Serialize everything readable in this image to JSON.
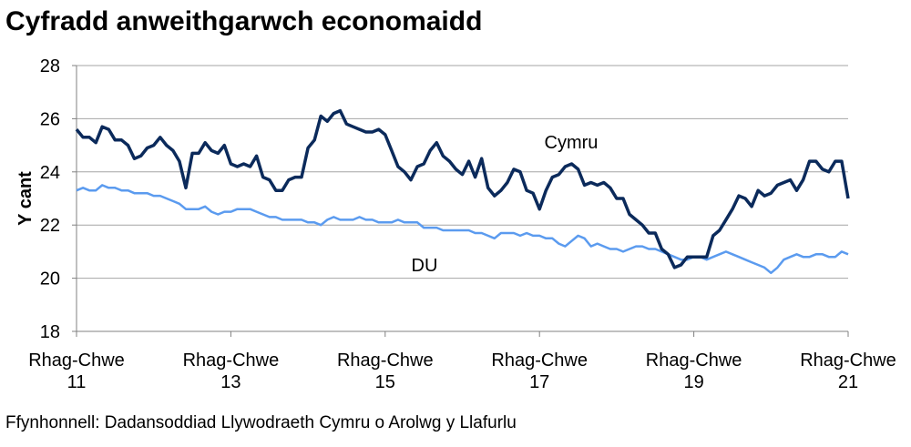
{
  "chart_data": {
    "type": "line",
    "title": "Cyfradd anweithgarwch economaidd",
    "y_label": "Y cant",
    "source": "Ffynhonnell: Dadansoddiad Llywodraeth Cymru o Arolwg y Llafurlu",
    "categories": [
      [
        "Rhag-Chwe",
        "11"
      ],
      null,
      null,
      null,
      null,
      null,
      null,
      null,
      null,
      null,
      null,
      null,
      null,
      null,
      null,
      null,
      null,
      null,
      null,
      null,
      null,
      null,
      null,
      null,
      [
        "Rhag-Chwe",
        "13"
      ],
      null,
      null,
      null,
      null,
      null,
      null,
      null,
      null,
      null,
      null,
      null,
      null,
      null,
      null,
      null,
      null,
      null,
      null,
      null,
      null,
      null,
      null,
      null,
      [
        "Rhag-Chwe",
        "15"
      ],
      null,
      null,
      null,
      null,
      null,
      null,
      null,
      null,
      null,
      null,
      null,
      null,
      null,
      null,
      null,
      null,
      null,
      null,
      null,
      null,
      null,
      null,
      null,
      [
        "Rhag-Chwe",
        "17"
      ],
      null,
      null,
      null,
      null,
      null,
      null,
      null,
      null,
      null,
      null,
      null,
      null,
      null,
      null,
      null,
      null,
      null,
      null,
      null,
      null,
      null,
      null,
      null,
      [
        "Rhag-Chwe",
        "19"
      ],
      null,
      null,
      null,
      null,
      null,
      null,
      null,
      null,
      null,
      null,
      null,
      null,
      null,
      null,
      null,
      null,
      null,
      null,
      null,
      null,
      null,
      null,
      null,
      [
        "Rhag-Chwe",
        "21"
      ]
    ],
    "series": [
      {
        "name": "Cymru",
        "color": "#0b2a5b",
        "values": [
          25.6,
          25.3,
          25.3,
          25.1,
          25.7,
          25.6,
          25.2,
          25.2,
          25.0,
          24.5,
          24.6,
          24.9,
          25.0,
          25.3,
          25.0,
          24.8,
          24.4,
          23.4,
          24.7,
          24.7,
          25.1,
          24.8,
          24.7,
          25.0,
          24.3,
          24.2,
          24.3,
          24.2,
          24.6,
          23.8,
          23.7,
          23.3,
          23.3,
          23.7,
          23.8,
          23.8,
          24.9,
          25.2,
          26.1,
          25.9,
          26.2,
          26.3,
          25.8,
          25.7,
          25.6,
          25.5,
          25.5,
          25.6,
          25.4,
          24.8,
          24.2,
          24.0,
          23.7,
          24.2,
          24.3,
          24.8,
          25.1,
          24.6,
          24.4,
          24.1,
          23.9,
          24.4,
          23.8,
          24.5,
          23.4,
          23.1,
          23.3,
          23.6,
          24.1,
          24.0,
          23.3,
          23.2,
          22.6,
          23.3,
          23.8,
          23.9,
          24.2,
          24.3,
          24.1,
          23.5,
          23.6,
          23.5,
          23.6,
          23.4,
          23.0,
          23.0,
          22.4,
          22.2,
          22.0,
          21.7,
          21.7,
          21.1,
          20.9,
          20.4,
          20.5,
          20.8,
          20.8,
          20.8,
          20.8,
          21.6,
          21.8,
          22.2,
          22.6,
          23.1,
          23.0,
          22.7,
          23.3,
          23.1,
          23.2,
          23.5,
          23.6,
          23.7,
          23.3,
          23.7,
          24.4,
          24.4,
          24.1,
          24.0,
          24.4,
          24.4,
          23.0
        ]
      },
      {
        "name": "DU",
        "color": "#5b9bef",
        "values": [
          23.3,
          23.4,
          23.3,
          23.3,
          23.5,
          23.4,
          23.4,
          23.3,
          23.3,
          23.2,
          23.2,
          23.2,
          23.1,
          23.1,
          23.0,
          22.9,
          22.8,
          22.6,
          22.6,
          22.6,
          22.7,
          22.5,
          22.4,
          22.5,
          22.5,
          22.6,
          22.6,
          22.6,
          22.5,
          22.4,
          22.3,
          22.3,
          22.2,
          22.2,
          22.2,
          22.2,
          22.1,
          22.1,
          22.0,
          22.2,
          22.3,
          22.2,
          22.2,
          22.2,
          22.3,
          22.2,
          22.2,
          22.1,
          22.1,
          22.1,
          22.2,
          22.1,
          22.1,
          22.1,
          21.9,
          21.9,
          21.9,
          21.8,
          21.8,
          21.8,
          21.8,
          21.8,
          21.7,
          21.7,
          21.6,
          21.5,
          21.7,
          21.7,
          21.7,
          21.6,
          21.7,
          21.6,
          21.6,
          21.5,
          21.5,
          21.3,
          21.2,
          21.4,
          21.6,
          21.5,
          21.2,
          21.3,
          21.2,
          21.1,
          21.1,
          21.0,
          21.1,
          21.2,
          21.2,
          21.1,
          21.1,
          21.0,
          20.9,
          20.8,
          20.7,
          20.7,
          20.8,
          20.8,
          20.7,
          20.8,
          20.9,
          21.0,
          20.9,
          20.8,
          20.7,
          20.6,
          20.5,
          20.4,
          20.2,
          20.4,
          20.7,
          20.8,
          20.9,
          20.8,
          20.8,
          20.9,
          20.9,
          20.8,
          20.8,
          21.0,
          20.9
        ]
      }
    ],
    "annotations": [
      "Cymru",
      "DU"
    ],
    "ylim": [
      18,
      28
    ],
    "yticks": [
      18,
      20,
      22,
      24,
      26,
      28
    ],
    "grid": true
  }
}
